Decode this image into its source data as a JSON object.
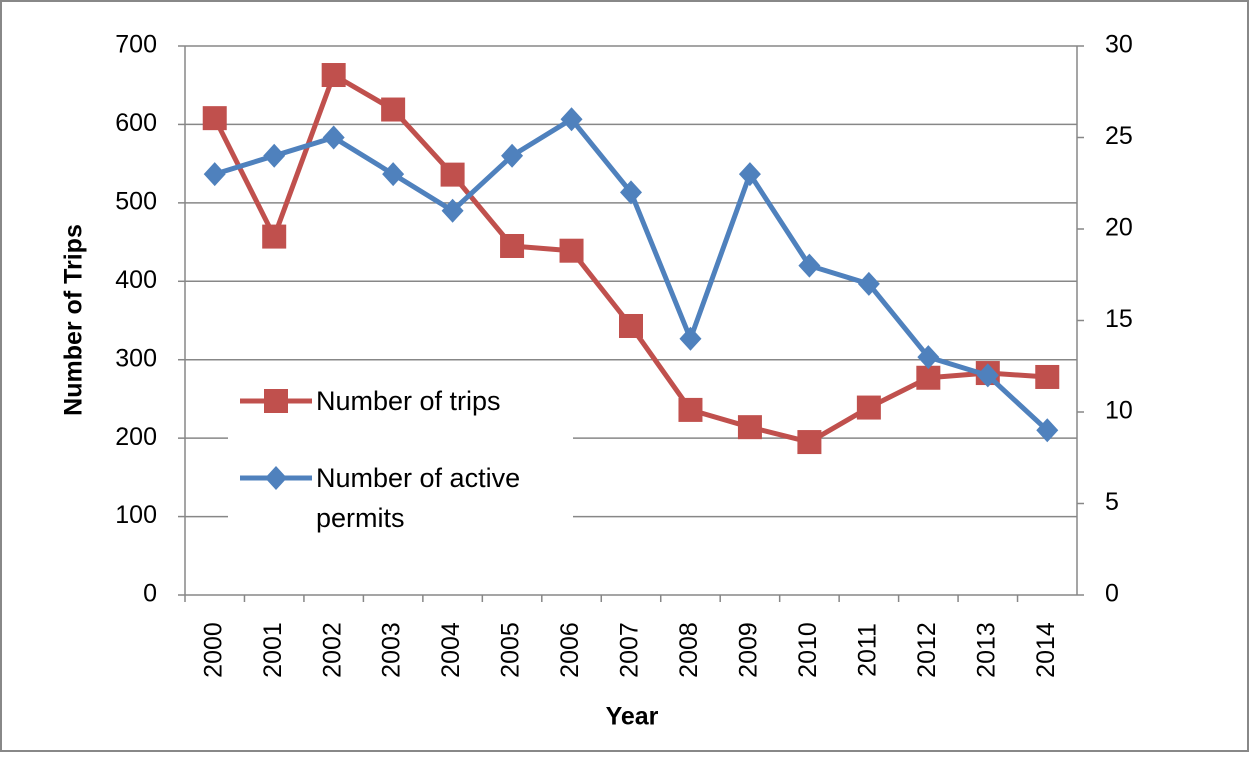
{
  "chart_data": {
    "type": "line",
    "y_label": "Number of Trips",
    "x_label": "Year",
    "categories": [
      "2000",
      "2001",
      "2002",
      "2003",
      "2004",
      "2005",
      "2006",
      "2007",
      "2008",
      "2009",
      "2010",
      "2011",
      "2012",
      "2013",
      "2014"
    ],
    "series": [
      {
        "name": "Number of trips",
        "color": "#c0504d",
        "marker": "square",
        "values": [
          608,
          457,
          663,
          619,
          536,
          445,
          439,
          343,
          236,
          214,
          195,
          239,
          277,
          283,
          278
        ]
      },
      {
        "name": "Number of active permits",
        "color": "#4f81bd",
        "marker": "diamond",
        "axis": "y2",
        "values": [
          23,
          24,
          25,
          23,
          21,
          24,
          26,
          22,
          14,
          23,
          18,
          17,
          13,
          12,
          9
        ]
      }
    ],
    "ylim": [
      0,
      700
    ],
    "yticks": [
      0,
      100,
      200,
      300,
      400,
      500,
      600,
      700
    ],
    "y2lim": [
      0,
      30
    ],
    "y2ticks": [
      0,
      5,
      10,
      15,
      20,
      25,
      30
    ],
    "grid": true,
    "legend": "left"
  }
}
